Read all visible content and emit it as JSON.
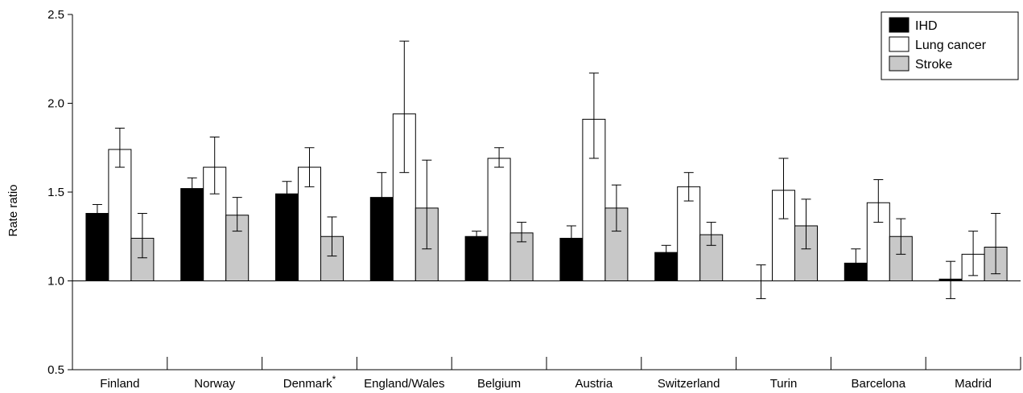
{
  "chart_data": {
    "type": "bar",
    "title": "",
    "xlabel": "",
    "ylabel": "Rate ratio",
    "ylim": [
      0.5,
      2.5
    ],
    "yticks": [
      "0.5",
      "1.0",
      "1.5",
      "2.0",
      "2.5"
    ],
    "baseline": 1.0,
    "grid": false,
    "legend_position": "top-right",
    "categories": [
      "Finland",
      "Norway",
      "Denmark",
      "England/Wales",
      "Belgium",
      "Austria",
      "Switzerland",
      "Turin",
      "Barcelona",
      "Madrid"
    ],
    "category_marks": [
      "",
      "",
      "*",
      "",
      "",
      "",
      "",
      "",
      "",
      ""
    ],
    "series": [
      {
        "name": "IHD",
        "color": "#000000",
        "values": [
          1.38,
          1.52,
          1.49,
          1.47,
          1.25,
          1.24,
          1.16,
          1.0,
          1.1,
          1.01
        ],
        "lower": [
          1.33,
          1.46,
          1.43,
          1.35,
          1.22,
          1.18,
          1.12,
          0.9,
          1.04,
          0.9
        ],
        "upper": [
          1.43,
          1.58,
          1.56,
          1.61,
          1.28,
          1.31,
          1.2,
          1.09,
          1.18,
          1.11
        ]
      },
      {
        "name": "Lung cancer",
        "color": "#ffffff",
        "values": [
          1.74,
          1.64,
          1.64,
          1.94,
          1.69,
          1.91,
          1.53,
          1.51,
          1.44,
          1.15
        ],
        "lower": [
          1.64,
          1.49,
          1.53,
          1.61,
          1.64,
          1.69,
          1.45,
          1.35,
          1.33,
          1.03
        ],
        "upper": [
          1.86,
          1.81,
          1.75,
          2.35,
          1.75,
          2.17,
          1.61,
          1.69,
          1.57,
          1.28
        ]
      },
      {
        "name": "Stroke",
        "color": "#c8c8c8",
        "values": [
          1.24,
          1.37,
          1.25,
          1.41,
          1.27,
          1.41,
          1.26,
          1.31,
          1.25,
          1.19
        ],
        "lower": [
          1.13,
          1.28,
          1.14,
          1.18,
          1.22,
          1.28,
          1.2,
          1.18,
          1.15,
          1.04
        ],
        "upper": [
          1.38,
          1.47,
          1.36,
          1.68,
          1.33,
          1.54,
          1.33,
          1.46,
          1.35,
          1.38
        ]
      }
    ]
  }
}
